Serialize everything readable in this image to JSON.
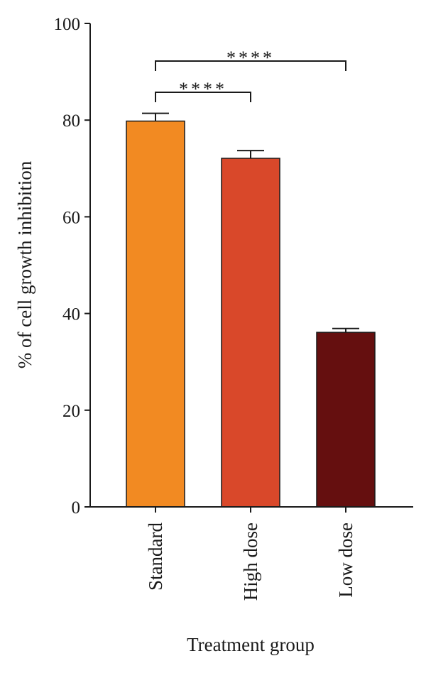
{
  "chart_data": {
    "type": "bar",
    "title": "",
    "xlabel": "Treatment group",
    "ylabel": "% of cell growth inhibition",
    "ylim": [
      0,
      100
    ],
    "yticks": [
      0,
      20,
      40,
      60,
      80,
      100
    ],
    "categories": [
      "Standard",
      "High dose",
      "Low dose"
    ],
    "values": [
      79.8,
      72.1,
      36.1
    ],
    "errors": [
      1.6,
      1.6,
      0.8
    ],
    "colors": [
      "#F28A22",
      "#D9482A",
      "#650F0F"
    ],
    "significance": [
      {
        "from": 0,
        "to": 1,
        "label": "****"
      },
      {
        "from": 0,
        "to": 2,
        "label": "****"
      }
    ],
    "grid": false,
    "legend": "none"
  }
}
